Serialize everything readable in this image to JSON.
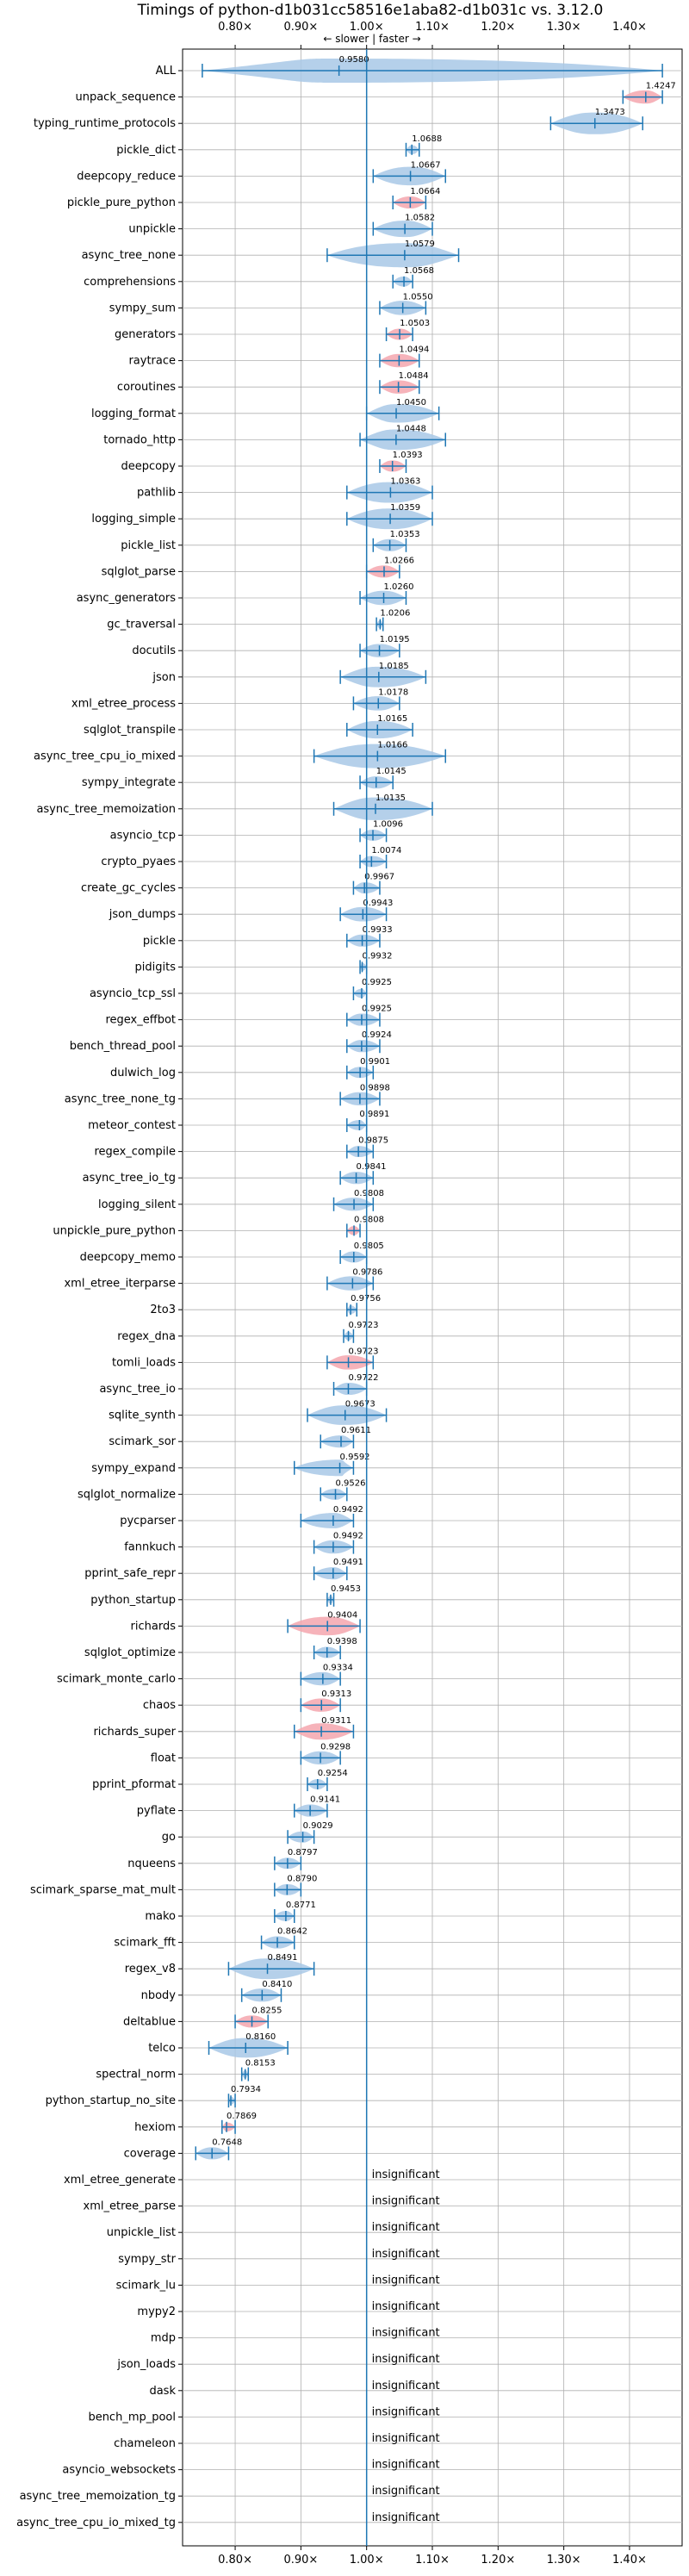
{
  "chart_data": {
    "type": "violin",
    "title": "Timings of python-d1b031cc58516e1aba82-d1b031c vs. 3.12.0",
    "direction_annotation": "← slower | faster →",
    "xlim": [
      0.72,
      1.48
    ],
    "xticks": [
      {
        "value": 0.8,
        "label": "0.80×"
      },
      {
        "value": 0.9,
        "label": "0.90×"
      },
      {
        "value": 1.0,
        "label": "1.00×"
      },
      {
        "value": 1.1,
        "label": "1.10×"
      },
      {
        "value": 1.2,
        "label": "1.20×"
      },
      {
        "value": 1.3,
        "label": "1.30×"
      },
      {
        "value": 1.4,
        "label": "1.40×"
      }
    ],
    "reference_line": 1.0,
    "grid": true,
    "colors": {
      "normal": "#a8c8e6",
      "significant": "#f4a6ae",
      "line": "#1f77b4"
    },
    "insignificant_text": "insignificant",
    "benchmarks": [
      {
        "name": "ALL",
        "value": 0.958,
        "label": "0.9580",
        "min": 0.75,
        "max": 1.45,
        "hl": false
      },
      {
        "name": "unpack_sequence",
        "value": 1.4247,
        "label": "1.4247",
        "min": 1.39,
        "max": 1.45,
        "hl": true
      },
      {
        "name": "typing_runtime_protocols",
        "value": 1.3473,
        "label": "1.3473",
        "min": 1.28,
        "max": 1.42,
        "hl": false
      },
      {
        "name": "pickle_dict",
        "value": 1.0688,
        "label": "1.0688",
        "min": 1.06,
        "max": 1.08,
        "hl": false
      },
      {
        "name": "deepcopy_reduce",
        "value": 1.0667,
        "label": "1.0667",
        "min": 1.01,
        "max": 1.12,
        "hl": false
      },
      {
        "name": "pickle_pure_python",
        "value": 1.0664,
        "label": "1.0664",
        "min": 1.04,
        "max": 1.09,
        "hl": true
      },
      {
        "name": "unpickle",
        "value": 1.0582,
        "label": "1.0582",
        "min": 1.01,
        "max": 1.1,
        "hl": false
      },
      {
        "name": "async_tree_none",
        "value": 1.0579,
        "label": "1.0579",
        "min": 0.94,
        "max": 1.14,
        "hl": false
      },
      {
        "name": "comprehensions",
        "value": 1.0568,
        "label": "1.0568",
        "min": 1.04,
        "max": 1.07,
        "hl": false
      },
      {
        "name": "sympy_sum",
        "value": 1.055,
        "label": "1.0550",
        "min": 1.02,
        "max": 1.09,
        "hl": false
      },
      {
        "name": "generators",
        "value": 1.0503,
        "label": "1.0503",
        "min": 1.03,
        "max": 1.07,
        "hl": true
      },
      {
        "name": "raytrace",
        "value": 1.0494,
        "label": "1.0494",
        "min": 1.02,
        "max": 1.08,
        "hl": true
      },
      {
        "name": "coroutines",
        "value": 1.0484,
        "label": "1.0484",
        "min": 1.02,
        "max": 1.08,
        "hl": true
      },
      {
        "name": "logging_format",
        "value": 1.045,
        "label": "1.0450",
        "min": 1.0,
        "max": 1.11,
        "hl": false
      },
      {
        "name": "tornado_http",
        "value": 1.0448,
        "label": "1.0448",
        "min": 0.99,
        "max": 1.12,
        "hl": false
      },
      {
        "name": "deepcopy",
        "value": 1.0393,
        "label": "1.0393",
        "min": 1.02,
        "max": 1.06,
        "hl": true
      },
      {
        "name": "pathlib",
        "value": 1.0363,
        "label": "1.0363",
        "min": 0.97,
        "max": 1.1,
        "hl": false
      },
      {
        "name": "logging_simple",
        "value": 1.0359,
        "label": "1.0359",
        "min": 0.97,
        "max": 1.1,
        "hl": false
      },
      {
        "name": "pickle_list",
        "value": 1.0353,
        "label": "1.0353",
        "min": 1.01,
        "max": 1.06,
        "hl": false
      },
      {
        "name": "sqlglot_parse",
        "value": 1.0266,
        "label": "1.0266",
        "min": 1.0,
        "max": 1.05,
        "hl": true
      },
      {
        "name": "async_generators",
        "value": 1.026,
        "label": "1.0260",
        "min": 0.99,
        "max": 1.06,
        "hl": false
      },
      {
        "name": "gc_traversal",
        "value": 1.0206,
        "label": "1.0206",
        "min": 1.015,
        "max": 1.025,
        "hl": false
      },
      {
        "name": "docutils",
        "value": 1.0195,
        "label": "1.0195",
        "min": 0.99,
        "max": 1.05,
        "hl": false
      },
      {
        "name": "json",
        "value": 1.0185,
        "label": "1.0185",
        "min": 0.96,
        "max": 1.09,
        "hl": false
      },
      {
        "name": "xml_etree_process",
        "value": 1.0178,
        "label": "1.0178",
        "min": 0.98,
        "max": 1.05,
        "hl": false
      },
      {
        "name": "sqlglot_transpile",
        "value": 1.0165,
        "label": "1.0165",
        "min": 0.97,
        "max": 1.07,
        "hl": false
      },
      {
        "name": "async_tree_cpu_io_mixed",
        "value": 1.0166,
        "label": "1.0166",
        "min": 0.92,
        "max": 1.12,
        "hl": false
      },
      {
        "name": "sympy_integrate",
        "value": 1.0145,
        "label": "1.0145",
        "min": 0.99,
        "max": 1.04,
        "hl": false
      },
      {
        "name": "async_tree_memoization",
        "value": 1.0135,
        "label": "1.0135",
        "min": 0.95,
        "max": 1.1,
        "hl": false
      },
      {
        "name": "asyncio_tcp",
        "value": 1.0096,
        "label": "1.0096",
        "min": 0.99,
        "max": 1.03,
        "hl": false
      },
      {
        "name": "crypto_pyaes",
        "value": 1.0074,
        "label": "1.0074",
        "min": 0.99,
        "max": 1.03,
        "hl": false
      },
      {
        "name": "create_gc_cycles",
        "value": 0.9967,
        "label": "0.9967",
        "min": 0.98,
        "max": 1.02,
        "hl": false
      },
      {
        "name": "json_dumps",
        "value": 0.9943,
        "label": "0.9943",
        "min": 0.96,
        "max": 1.03,
        "hl": false
      },
      {
        "name": "pickle",
        "value": 0.9933,
        "label": "0.9933",
        "min": 0.97,
        "max": 1.02,
        "hl": false
      },
      {
        "name": "pidigits",
        "value": 0.9932,
        "label": "0.9932",
        "min": 0.99,
        "max": 1.0,
        "hl": false
      },
      {
        "name": "asyncio_tcp_ssl",
        "value": 0.9925,
        "label": "0.9925",
        "min": 0.98,
        "max": 1.0,
        "hl": false
      },
      {
        "name": "regex_effbot",
        "value": 0.9925,
        "label": "0.9925",
        "min": 0.97,
        "max": 1.02,
        "hl": false
      },
      {
        "name": "bench_thread_pool",
        "value": 0.9924,
        "label": "0.9924",
        "min": 0.97,
        "max": 1.02,
        "hl": false
      },
      {
        "name": "dulwich_log",
        "value": 0.9901,
        "label": "0.9901",
        "min": 0.97,
        "max": 1.01,
        "hl": false
      },
      {
        "name": "async_tree_none_tg",
        "value": 0.9898,
        "label": "0.9898",
        "min": 0.96,
        "max": 1.02,
        "hl": false
      },
      {
        "name": "meteor_contest",
        "value": 0.9891,
        "label": "0.9891",
        "min": 0.97,
        "max": 1.0,
        "hl": false
      },
      {
        "name": "regex_compile",
        "value": 0.9875,
        "label": "0.9875",
        "min": 0.97,
        "max": 1.01,
        "hl": false
      },
      {
        "name": "async_tree_io_tg",
        "value": 0.9841,
        "label": "0.9841",
        "min": 0.96,
        "max": 1.01,
        "hl": false
      },
      {
        "name": "logging_silent",
        "value": 0.9808,
        "label": "0.9808",
        "min": 0.95,
        "max": 1.01,
        "hl": false
      },
      {
        "name": "unpickle_pure_python",
        "value": 0.9808,
        "label": "0.9808",
        "min": 0.97,
        "max": 0.99,
        "hl": true
      },
      {
        "name": "deepcopy_memo",
        "value": 0.9805,
        "label": "0.9805",
        "min": 0.96,
        "max": 1.0,
        "hl": false
      },
      {
        "name": "xml_etree_iterparse",
        "value": 0.9786,
        "label": "0.9786",
        "min": 0.94,
        "max": 1.01,
        "hl": false
      },
      {
        "name": "2to3",
        "value": 0.9756,
        "label": "0.9756",
        "min": 0.97,
        "max": 0.985,
        "hl": false
      },
      {
        "name": "regex_dna",
        "value": 0.9723,
        "label": "0.9723",
        "min": 0.965,
        "max": 0.98,
        "hl": false
      },
      {
        "name": "tomli_loads",
        "value": 0.9723,
        "label": "0.9723",
        "min": 0.94,
        "max": 1.01,
        "hl": true
      },
      {
        "name": "async_tree_io",
        "value": 0.9722,
        "label": "0.9722",
        "min": 0.95,
        "max": 1.0,
        "hl": false
      },
      {
        "name": "sqlite_synth",
        "value": 0.9673,
        "label": "0.9673",
        "min": 0.91,
        "max": 1.03,
        "hl": false
      },
      {
        "name": "scimark_sor",
        "value": 0.9611,
        "label": "0.9611",
        "min": 0.93,
        "max": 0.98,
        "hl": false
      },
      {
        "name": "sympy_expand",
        "value": 0.9592,
        "label": "0.9592",
        "min": 0.89,
        "max": 0.98,
        "hl": false
      },
      {
        "name": "sqlglot_normalize",
        "value": 0.9526,
        "label": "0.9526",
        "min": 0.93,
        "max": 0.97,
        "hl": false
      },
      {
        "name": "pycparser",
        "value": 0.9492,
        "label": "0.9492",
        "min": 0.9,
        "max": 0.98,
        "hl": false
      },
      {
        "name": "fannkuch",
        "value": 0.9492,
        "label": "0.9492",
        "min": 0.92,
        "max": 0.98,
        "hl": false
      },
      {
        "name": "pprint_safe_repr",
        "value": 0.9491,
        "label": "0.9491",
        "min": 0.92,
        "max": 0.97,
        "hl": false
      },
      {
        "name": "python_startup",
        "value": 0.9453,
        "label": "0.9453",
        "min": 0.94,
        "max": 0.95,
        "hl": false
      },
      {
        "name": "richards",
        "value": 0.9404,
        "label": "0.9404",
        "min": 0.88,
        "max": 0.99,
        "hl": true
      },
      {
        "name": "sqlglot_optimize",
        "value": 0.9398,
        "label": "0.9398",
        "min": 0.92,
        "max": 0.96,
        "hl": false
      },
      {
        "name": "scimark_monte_carlo",
        "value": 0.9334,
        "label": "0.9334",
        "min": 0.9,
        "max": 0.96,
        "hl": false
      },
      {
        "name": "chaos",
        "value": 0.9313,
        "label": "0.9313",
        "min": 0.9,
        "max": 0.96,
        "hl": true
      },
      {
        "name": "richards_super",
        "value": 0.9311,
        "label": "0.9311",
        "min": 0.89,
        "max": 0.98,
        "hl": true
      },
      {
        "name": "float",
        "value": 0.9298,
        "label": "0.9298",
        "min": 0.9,
        "max": 0.96,
        "hl": false
      },
      {
        "name": "pprint_pformat",
        "value": 0.9254,
        "label": "0.9254",
        "min": 0.91,
        "max": 0.94,
        "hl": false
      },
      {
        "name": "pyflate",
        "value": 0.9141,
        "label": "0.9141",
        "min": 0.89,
        "max": 0.94,
        "hl": false
      },
      {
        "name": "go",
        "value": 0.9029,
        "label": "0.9029",
        "min": 0.88,
        "max": 0.92,
        "hl": false
      },
      {
        "name": "nqueens",
        "value": 0.8797,
        "label": "0.8797",
        "min": 0.86,
        "max": 0.9,
        "hl": false
      },
      {
        "name": "scimark_sparse_mat_mult",
        "value": 0.879,
        "label": "0.8790",
        "min": 0.86,
        "max": 0.9,
        "hl": false
      },
      {
        "name": "mako",
        "value": 0.8771,
        "label": "0.8771",
        "min": 0.86,
        "max": 0.89,
        "hl": false
      },
      {
        "name": "scimark_fft",
        "value": 0.8642,
        "label": "0.8642",
        "min": 0.84,
        "max": 0.89,
        "hl": false
      },
      {
        "name": "regex_v8",
        "value": 0.8491,
        "label": "0.8491",
        "min": 0.79,
        "max": 0.92,
        "hl": false
      },
      {
        "name": "nbody",
        "value": 0.841,
        "label": "0.8410",
        "min": 0.81,
        "max": 0.87,
        "hl": false
      },
      {
        "name": "deltablue",
        "value": 0.8255,
        "label": "0.8255",
        "min": 0.8,
        "max": 0.85,
        "hl": true
      },
      {
        "name": "telco",
        "value": 0.816,
        "label": "0.8160",
        "min": 0.76,
        "max": 0.88,
        "hl": false
      },
      {
        "name": "spectral_norm",
        "value": 0.8153,
        "label": "0.8153",
        "min": 0.81,
        "max": 0.82,
        "hl": false
      },
      {
        "name": "python_startup_no_site",
        "value": 0.7934,
        "label": "0.7934",
        "min": 0.79,
        "max": 0.8,
        "hl": false
      },
      {
        "name": "hexiom",
        "value": 0.7869,
        "label": "0.7869",
        "min": 0.78,
        "max": 0.8,
        "hl": true
      },
      {
        "name": "coverage",
        "value": 0.7648,
        "label": "0.7648",
        "min": 0.74,
        "max": 0.79,
        "hl": false
      },
      {
        "name": "xml_etree_generate",
        "insignificant": true
      },
      {
        "name": "xml_etree_parse",
        "insignificant": true
      },
      {
        "name": "unpickle_list",
        "insignificant": true
      },
      {
        "name": "sympy_str",
        "insignificant": true
      },
      {
        "name": "scimark_lu",
        "insignificant": true
      },
      {
        "name": "mypy2",
        "insignificant": true
      },
      {
        "name": "mdp",
        "insignificant": true
      },
      {
        "name": "json_loads",
        "insignificant": true
      },
      {
        "name": "dask",
        "insignificant": true
      },
      {
        "name": "bench_mp_pool",
        "insignificant": true
      },
      {
        "name": "chameleon",
        "insignificant": true
      },
      {
        "name": "asyncio_websockets",
        "insignificant": true
      },
      {
        "name": "async_tree_memoization_tg",
        "insignificant": true
      },
      {
        "name": "async_tree_cpu_io_mixed_tg",
        "insignificant": true
      }
    ]
  }
}
